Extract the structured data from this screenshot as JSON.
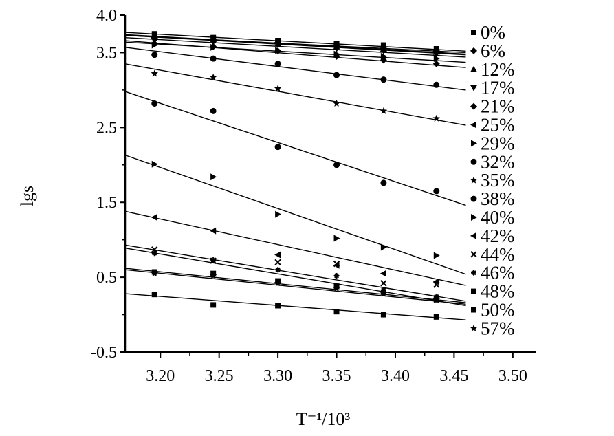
{
  "chart_data": {
    "type": "scatter",
    "xlabel": "T⁻¹/10³",
    "ylabel": "lgs",
    "xlim": [
      3.17,
      3.52
    ],
    "ylim": [
      -0.5,
      4.0
    ],
    "xticks": [
      "3.20",
      "3.25",
      "3.30",
      "3.35",
      "3.40",
      "3.45",
      "3.50"
    ],
    "yticks": [
      "-0.5",
      "0.5",
      "1.5",
      "2.5",
      "3.5",
      "4.0"
    ],
    "legend_position": "right",
    "x": [
      3.195,
      3.245,
      3.3,
      3.35,
      3.39,
      3.435
    ],
    "series": [
      {
        "name": "0%",
        "marker": "square",
        "values": [
          3.75,
          3.7,
          3.66,
          3.62,
          3.6,
          3.55
        ],
        "fit": [
          3.77,
          3.52
        ]
      },
      {
        "name": "6%",
        "marker": "diamond",
        "values": [
          3.7,
          3.67,
          3.63,
          3.6,
          3.57,
          3.53
        ],
        "fit": [
          3.73,
          3.5
        ]
      },
      {
        "name": "12%",
        "marker": "triangle-up",
        "values": [
          3.72,
          3.68,
          3.62,
          3.58,
          3.55,
          3.51
        ],
        "fit": [
          3.74,
          3.48
        ]
      },
      {
        "name": "17%",
        "marker": "triangle-down",
        "values": [
          3.66,
          3.64,
          3.6,
          3.55,
          3.52,
          3.48
        ],
        "fit": [
          3.7,
          3.44
        ]
      },
      {
        "name": "21%",
        "marker": "diamond",
        "values": [
          3.62,
          3.58,
          3.52,
          3.45,
          3.4,
          3.35
        ],
        "fit": [
          3.66,
          3.3
        ]
      },
      {
        "name": "25%",
        "marker": "triangle-left",
        "values": [
          3.7,
          3.67,
          3.64,
          3.6,
          3.56,
          3.52
        ],
        "fit": [
          3.73,
          3.47
        ]
      },
      {
        "name": "29%",
        "marker": "triangle-right",
        "values": [
          3.6,
          3.57,
          3.53,
          3.48,
          3.45,
          3.42
        ],
        "fit": [
          3.64,
          3.37
        ]
      },
      {
        "name": "32%",
        "marker": "circle",
        "values": [
          3.47,
          3.42,
          3.35,
          3.2,
          3.14,
          3.07
        ],
        "fit": [
          3.57,
          3.0
        ]
      },
      {
        "name": "35%",
        "marker": "star",
        "values": [
          3.22,
          3.17,
          3.02,
          2.82,
          2.72,
          2.62
        ],
        "fit": [
          3.35,
          2.53
        ]
      },
      {
        "name": "38%",
        "marker": "circle",
        "values": [
          2.82,
          2.72,
          2.24,
          2.0,
          1.76,
          1.65
        ],
        "fit": [
          2.98,
          1.46
        ]
      },
      {
        "name": "40%",
        "marker": "triangle-right",
        "values": [
          2.01,
          1.84,
          1.34,
          1.02,
          0.9,
          0.79
        ],
        "fit": [
          2.13,
          0.54
        ]
      },
      {
        "name": "42%",
        "marker": "triangle-left",
        "values": [
          1.3,
          1.12,
          0.8,
          0.66,
          0.55,
          0.44
        ],
        "fit": [
          1.38,
          0.39
        ]
      },
      {
        "name": "44%",
        "marker": "x",
        "values": [
          0.87,
          0.72,
          0.7,
          0.68,
          0.42,
          0.4
        ],
        "fit": [
          0.93,
          0.18
        ]
      },
      {
        "name": "46%",
        "marker": "asterisk",
        "values": [
          0.82,
          0.73,
          0.6,
          0.52,
          0.33,
          0.24
        ],
        "fit": [
          0.89,
          0.12
        ]
      },
      {
        "name": "48%",
        "marker": "square",
        "values": [
          0.57,
          0.55,
          0.45,
          0.38,
          0.3,
          0.2
        ],
        "fit": [
          0.62,
          0.16
        ]
      },
      {
        "name": "50%",
        "marker": "square",
        "values": [
          0.27,
          0.13,
          0.12,
          0.04,
          0.0,
          -0.03
        ],
        "fit": [
          0.28,
          -0.07
        ]
      },
      {
        "name": "57%",
        "marker": "star",
        "values": [
          0.55,
          0.52,
          0.42,
          0.35,
          0.28,
          0.2
        ],
        "fit": [
          0.6,
          0.14
        ]
      }
    ]
  }
}
